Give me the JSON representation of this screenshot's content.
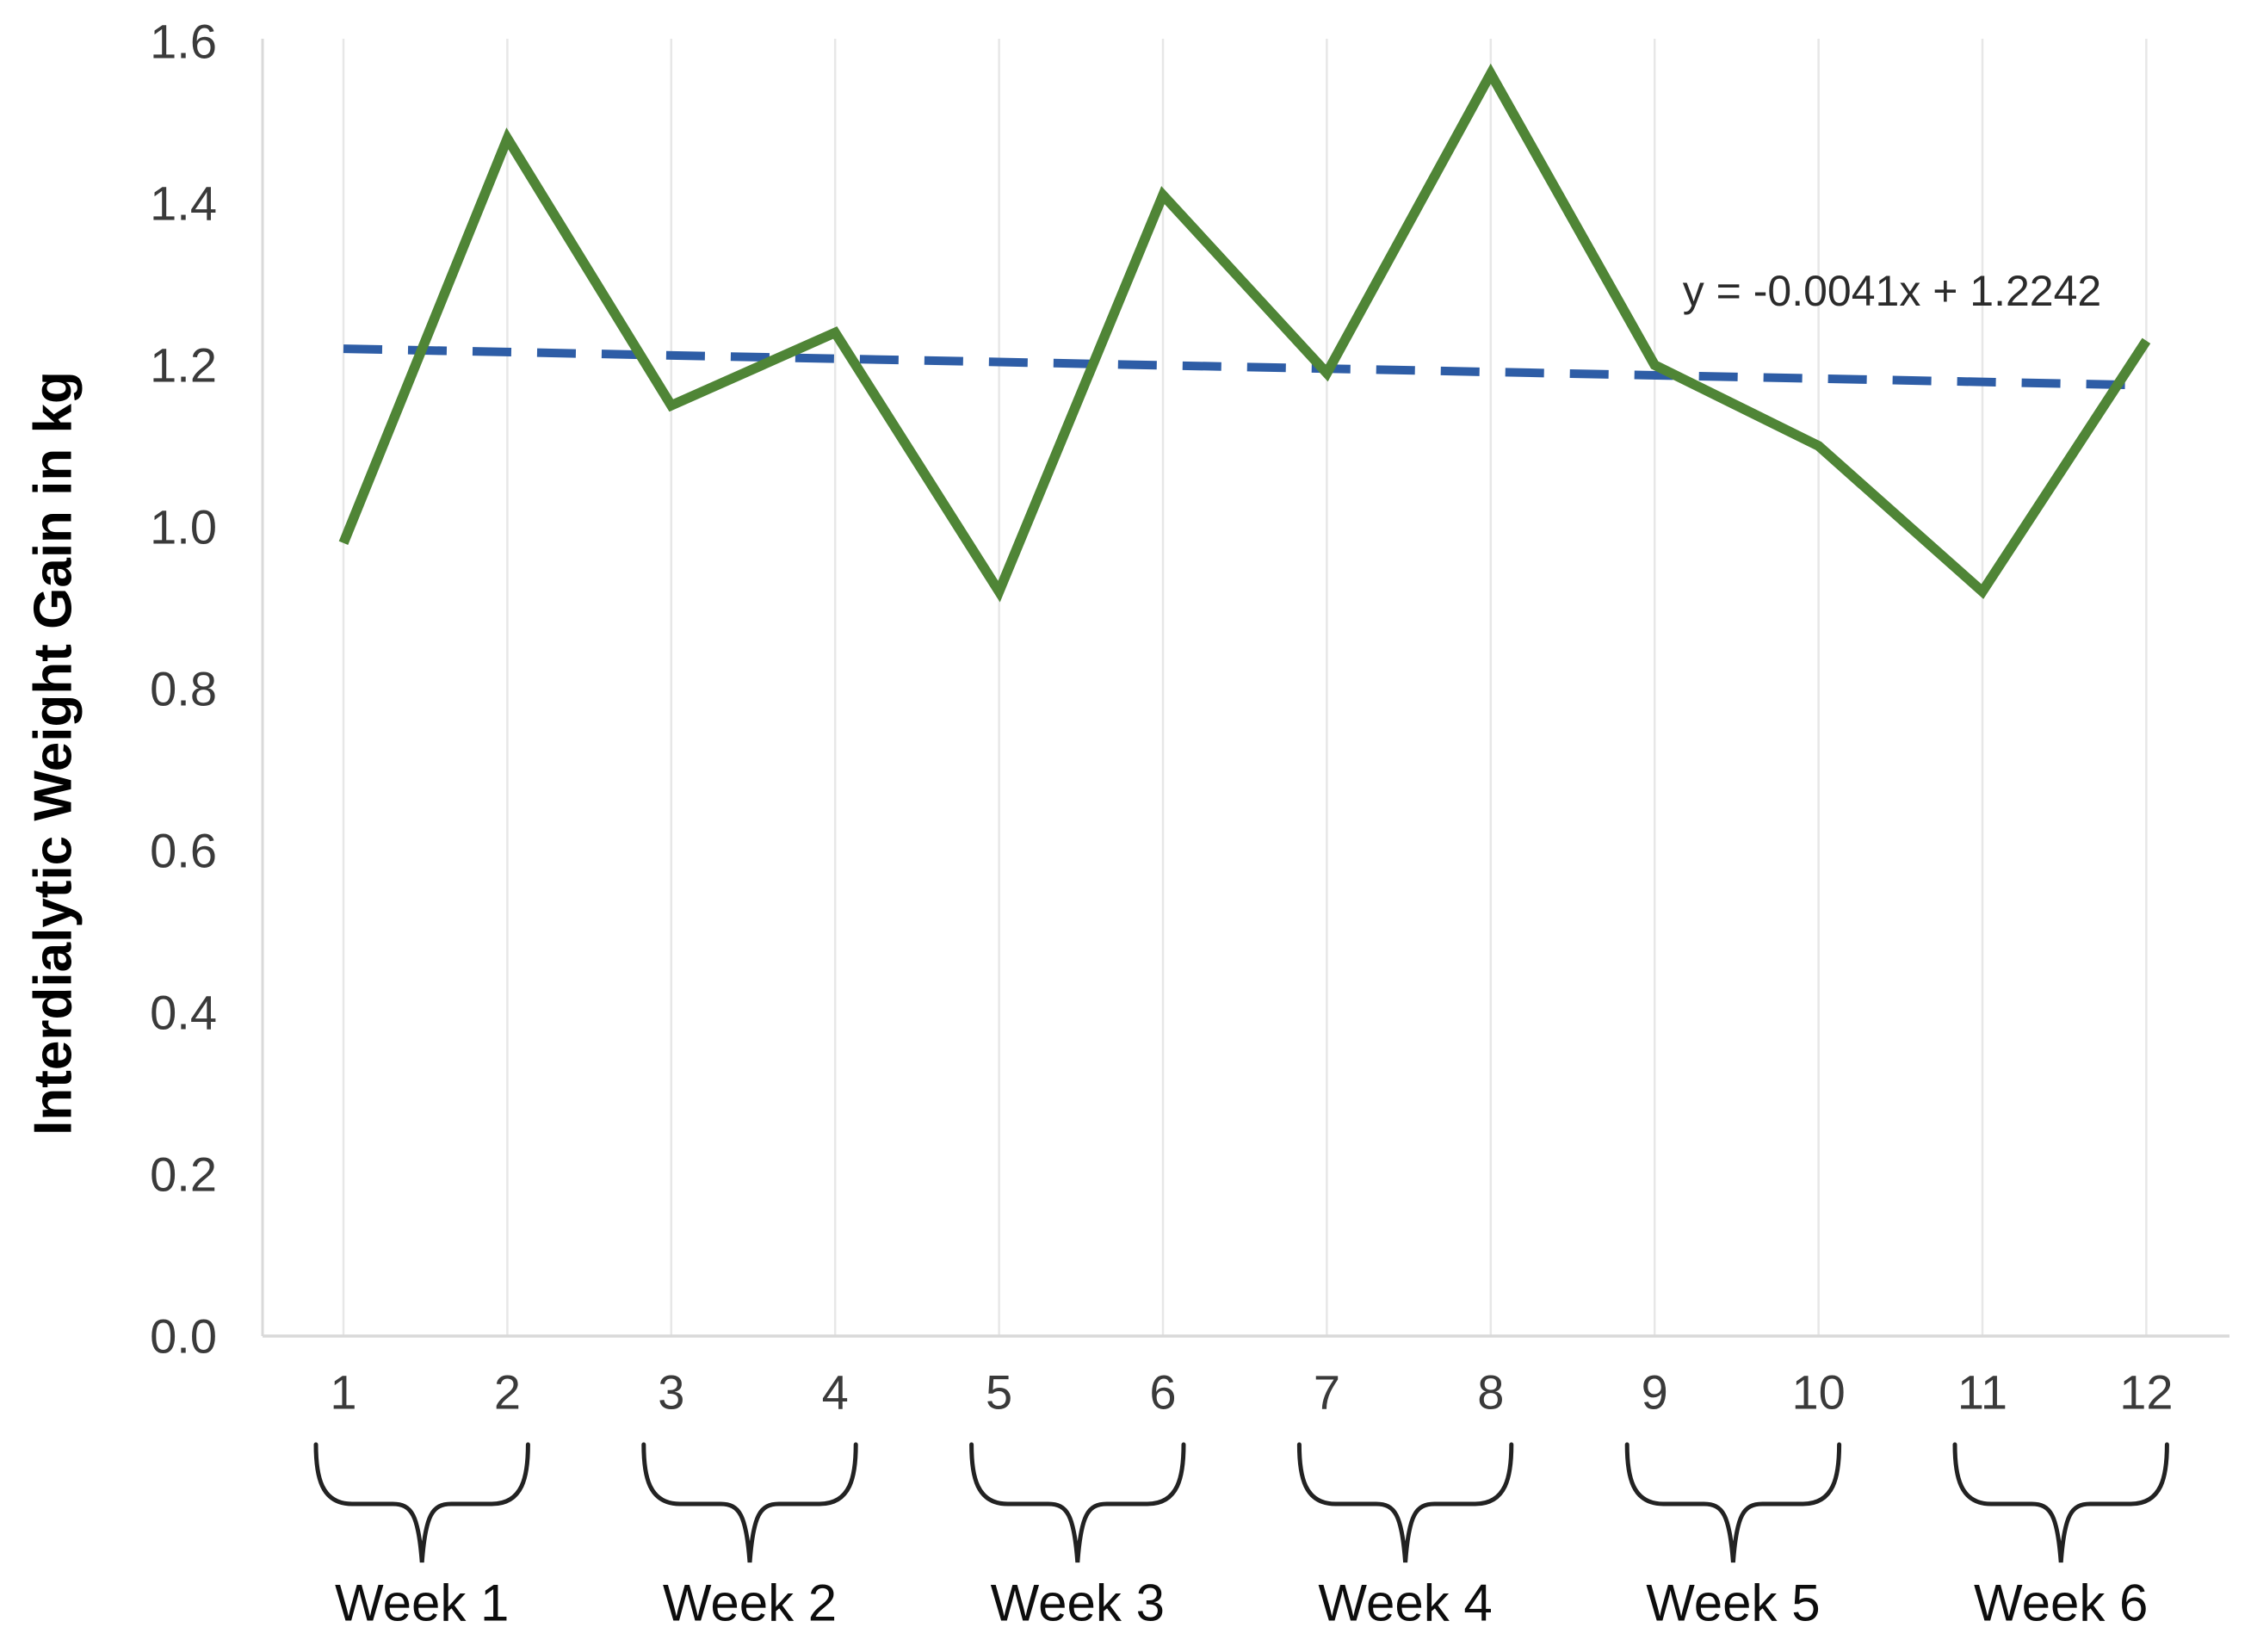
{
  "chart_data": {
    "type": "line",
    "title": "",
    "xlabel": "",
    "ylabel": "Interdialytic Weight Gain in kg",
    "x": [
      1,
      2,
      3,
      4,
      5,
      6,
      7,
      8,
      9,
      10,
      11,
      12
    ],
    "x_tick_labels": [
      "1",
      "2",
      "3",
      "4",
      "5",
      "6",
      "7",
      "8",
      "9",
      "10",
      "11",
      "12"
    ],
    "y_tick_labels": [
      "0.0",
      "0.2",
      "0.4",
      "0.6",
      "0.8",
      "1.0",
      "1.2",
      "1.4",
      "1.6"
    ],
    "y_tick_values": [
      0.0,
      0.2,
      0.4,
      0.6,
      0.8,
      1.0,
      1.2,
      1.4,
      1.6
    ],
    "ylim": [
      0.0,
      1.6
    ],
    "grid": "vertical-gridlines-only",
    "legend_position": "none",
    "series": [
      {
        "name": "interdialytic-weight-gain",
        "values": [
          0.98,
          1.48,
          1.15,
          1.24,
          0.92,
          1.41,
          1.19,
          1.56,
          1.2,
          1.1,
          0.92,
          1.23
        ],
        "color": "#4f8536",
        "style": "solid"
      }
    ],
    "trendline": {
      "equation": "y = -0.0041x + 1.2242",
      "slope": -0.0041,
      "intercept": 1.2242,
      "color": "#2e5da6",
      "style": "dashed"
    },
    "week_groups": [
      {
        "label": "Week 1",
        "sessions": [
          1,
          2
        ]
      },
      {
        "label": "Week 2",
        "sessions": [
          3,
          4
        ]
      },
      {
        "label": "Week 3",
        "sessions": [
          5,
          6
        ]
      },
      {
        "label": "Week 4",
        "sessions": [
          7,
          8
        ]
      },
      {
        "label": "Week 5",
        "sessions": [
          9,
          10
        ]
      },
      {
        "label": "Week 6",
        "sessions": [
          11,
          12
        ]
      }
    ]
  },
  "colors": {
    "series_green": "#4f8536",
    "trend_blue": "#2e5da6",
    "gridline": "#e7e7e7",
    "axis_line": "#d9d9d9",
    "tick_text": "#3a3a3a",
    "week_text": "#0d0d0d",
    "brace": "#222222",
    "background": "#ffffff"
  }
}
